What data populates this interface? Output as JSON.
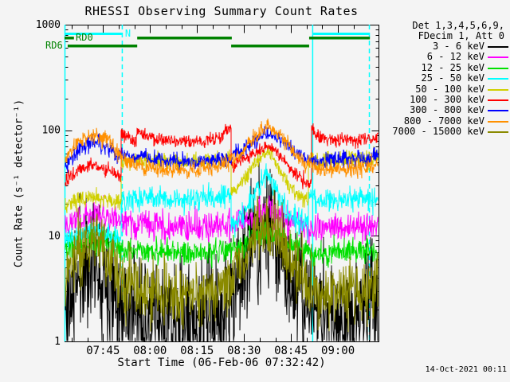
{
  "title": "RHESSI Observing Summary Count Rates",
  "x_axis_label": "Start Time (06-Feb-06 07:32:42)",
  "y_axis_label": "Count Rate (s⁻¹ detector⁻¹)",
  "timestamp": "14-Oct-2021 00:11",
  "legend": {
    "header1": "Det 1,3,4,5,6,9,",
    "header2": "FDecim 1, Att 0",
    "entries": [
      {
        "label": "3 - 6 keV",
        "color": "#000000"
      },
      {
        "label": "6 - 12 keV",
        "color": "#ff00ff"
      },
      {
        "label": "12 - 25 keV",
        "color": "#00e000"
      },
      {
        "label": "25 - 50 keV",
        "color": "#00ffff"
      },
      {
        "label": "50 - 100 keV",
        "color": "#d0d000"
      },
      {
        "label": "100 - 300 keV",
        "color": "#ff0000"
      },
      {
        "label": "300 - 800 keV",
        "color": "#0000ff"
      },
      {
        "label": "800 - 7000 keV",
        "color": "#ff9000"
      },
      {
        "label": "7000 - 15000 keV",
        "color": "#8a8a00"
      }
    ]
  },
  "flags": {
    "night_label": "N",
    "night_color": "#00ffff",
    "rd0_label": "RD0",
    "rd6_label": "RD6",
    "rd_color": "#008200",
    "night_bars_t": [
      [
        0,
        18.3
      ],
      [
        79.4,
        97.2
      ]
    ],
    "rd0_bars_t": [
      [
        0,
        3
      ],
      [
        23.2,
        53.4
      ],
      [
        78.1,
        97.5
      ]
    ],
    "rd6_bars_t": [
      [
        1,
        23.2
      ],
      [
        53.2,
        78.1
      ]
    ],
    "vlines_solid_t": [
      0,
      79.1
    ],
    "vlines_dashed_t": [
      18.3,
      97.2
    ]
  },
  "chart_data": {
    "type": "line",
    "y_scale": "log",
    "ylim": [
      1,
      1000
    ],
    "y_major_ticks": [
      "1",
      "10",
      "100",
      "1000"
    ],
    "x_unit": "minutes since 07:32:42",
    "x_range_minutes": [
      0,
      100.25
    ],
    "x_major_ticks": [
      {
        "t": 12.3,
        "label": "07:45"
      },
      {
        "t": 27.3,
        "label": "08:00"
      },
      {
        "t": 42.3,
        "label": "08:15"
      },
      {
        "t": 57.3,
        "label": "08:30"
      },
      {
        "t": 72.3,
        "label": "08:45"
      },
      {
        "t": 87.3,
        "label": "09:00"
      }
    ],
    "x_minor_tick_start": 2.3,
    "x_minor_tick_step": 5,
    "grid": false,
    "legend_position": "right-outside",
    "series": [
      {
        "name": "3 - 6 keV",
        "color": "#000000",
        "noise": 0.3,
        "seed": 11,
        "points": [
          [
            0,
            1.8
          ],
          [
            5,
            4.5
          ],
          [
            9,
            6.3
          ],
          [
            13,
            4.8
          ],
          [
            17,
            2.8
          ],
          [
            18.3,
            2.5
          ],
          [
            22,
            1.9
          ],
          [
            28,
            1.5
          ],
          [
            40,
            1.5
          ],
          [
            50,
            1.8
          ],
          [
            53.2,
            2.6
          ],
          [
            58,
            6
          ],
          [
            62,
            10.5
          ],
          [
            64.9,
            11.8
          ],
          [
            67,
            9.5
          ],
          [
            71,
            5
          ],
          [
            75,
            2.5
          ],
          [
            79.1,
            2.2
          ],
          [
            82,
            1.8
          ],
          [
            88,
            1.7
          ],
          [
            95,
            1.9
          ],
          [
            100.25,
            2.2
          ]
        ]
      },
      {
        "name": "6 - 12 keV",
        "color": "#ff00ff",
        "noise": 0.07,
        "seed": 22,
        "points": [
          [
            0,
            14
          ],
          [
            9,
            15.5
          ],
          [
            14,
            15
          ],
          [
            18.3,
            13.5
          ],
          [
            25,
            12.5
          ],
          [
            40,
            12
          ],
          [
            50,
            12.3
          ],
          [
            53.2,
            12.5
          ],
          [
            60,
            14
          ],
          [
            64.9,
            18
          ],
          [
            69,
            15
          ],
          [
            75,
            12.5
          ],
          [
            79.1,
            12
          ],
          [
            90,
            12
          ],
          [
            100.25,
            12.5
          ]
        ]
      },
      {
        "name": "12 - 25 keV",
        "color": "#00e000",
        "noise": 0.06,
        "seed": 33,
        "points": [
          [
            0,
            7.5
          ],
          [
            9,
            8.8
          ],
          [
            14,
            8.2
          ],
          [
            18.3,
            7.5
          ],
          [
            30,
            7
          ],
          [
            45,
            7
          ],
          [
            53.2,
            7.5
          ],
          [
            60,
            9
          ],
          [
            64.9,
            11.5
          ],
          [
            69,
            9.5
          ],
          [
            75,
            7.5
          ],
          [
            79.1,
            7
          ],
          [
            90,
            7
          ],
          [
            100.25,
            7.2
          ]
        ]
      },
      {
        "name": "25 - 50 keV",
        "color": "#00ffff",
        "noise": 0.055,
        "seed": 44,
        "points": [
          [
            0,
            9
          ],
          [
            5,
            10.5
          ],
          [
            9,
            11.5
          ],
          [
            14,
            10.5
          ],
          [
            18.29,
            9.5
          ],
          [
            18.3,
            22
          ],
          [
            25,
            23
          ],
          [
            35,
            22
          ],
          [
            45,
            23
          ],
          [
            53.19,
            24
          ],
          [
            53.2,
            12
          ],
          [
            57,
            16
          ],
          [
            61,
            26
          ],
          [
            64.9,
            39
          ],
          [
            67,
            30
          ],
          [
            70,
            20
          ],
          [
            73,
            15
          ],
          [
            78.09,
            13
          ],
          [
            78.1,
            22
          ],
          [
            85,
            22
          ],
          [
            95,
            22
          ],
          [
            100.25,
            21
          ]
        ]
      },
      {
        "name": "50 - 100 keV",
        "color": "#d0d000",
        "noise": 0.04,
        "seed": 55,
        "points": [
          [
            0,
            20
          ],
          [
            5,
            22
          ],
          [
            9,
            23.5
          ],
          [
            14,
            22
          ],
          [
            18.29,
            20
          ],
          [
            18.3,
            50
          ],
          [
            23,
            52
          ],
          [
            35,
            50
          ],
          [
            45,
            51
          ],
          [
            53.19,
            52
          ],
          [
            53.2,
            24
          ],
          [
            56,
            30
          ],
          [
            60,
            45
          ],
          [
            64.9,
            64
          ],
          [
            68,
            45
          ],
          [
            71,
            32
          ],
          [
            75,
            23
          ],
          [
            78.09,
            22
          ],
          [
            78.1,
            52
          ],
          [
            85,
            52
          ],
          [
            93,
            53
          ],
          [
            100.25,
            54
          ]
        ]
      },
      {
        "name": "100 - 300 keV",
        "color": "#ff0000",
        "noise": 0.032,
        "seed": 66,
        "points": [
          [
            0,
            33
          ],
          [
            4,
            42
          ],
          [
            9,
            48
          ],
          [
            14,
            42
          ],
          [
            17,
            36
          ],
          [
            18.29,
            36
          ],
          [
            18.3,
            95
          ],
          [
            20,
            87
          ],
          [
            22,
            81
          ],
          [
            23.19,
            80
          ],
          [
            23.2,
            105
          ],
          [
            25,
            92
          ],
          [
            28,
            84
          ],
          [
            34,
            79
          ],
          [
            42,
            78
          ],
          [
            47,
            80
          ],
          [
            50,
            88
          ],
          [
            53.19,
            108
          ],
          [
            53.2,
            46
          ],
          [
            55,
            48
          ],
          [
            58,
            56
          ],
          [
            64.9,
            71
          ],
          [
            68,
            62
          ],
          [
            71,
            48
          ],
          [
            74,
            38
          ],
          [
            78,
            31
          ],
          [
            79.09,
            31
          ],
          [
            79.1,
            100
          ],
          [
            81,
            88
          ],
          [
            84,
            82
          ],
          [
            90,
            80
          ],
          [
            95,
            81
          ],
          [
            100.25,
            84
          ]
        ]
      },
      {
        "name": "300 - 800 keV",
        "color": "#0000ff",
        "noise": 0.04,
        "seed": 77,
        "points": [
          [
            0,
            46
          ],
          [
            4,
            64
          ],
          [
            9,
            78
          ],
          [
            14,
            68
          ],
          [
            17,
            58
          ],
          [
            18.3,
            58
          ],
          [
            23,
            56
          ],
          [
            32,
            51
          ],
          [
            42,
            50
          ],
          [
            48,
            51
          ],
          [
            53.2,
            55
          ],
          [
            58,
            70
          ],
          [
            64.9,
            97
          ],
          [
            70,
            76
          ],
          [
            74,
            60
          ],
          [
            78,
            52
          ],
          [
            79.1,
            51
          ],
          [
            85,
            52
          ],
          [
            93,
            54
          ],
          [
            100.25,
            56
          ]
        ]
      },
      {
        "name": "800 - 7000 keV",
        "color": "#ff9000",
        "noise": 0.04,
        "seed": 88,
        "points": [
          [
            0,
            52
          ],
          [
            4,
            75
          ],
          [
            9,
            92
          ],
          [
            14,
            80
          ],
          [
            17,
            64
          ],
          [
            18.3,
            56
          ],
          [
            20,
            50
          ],
          [
            23,
            47
          ],
          [
            30,
            43
          ],
          [
            40,
            42
          ],
          [
            48,
            45
          ],
          [
            53.2,
            50
          ],
          [
            58,
            68
          ],
          [
            64.9,
            115
          ],
          [
            70,
            82
          ],
          [
            74,
            58
          ],
          [
            78,
            48
          ],
          [
            79.1,
            46
          ],
          [
            83,
            43
          ],
          [
            90,
            43
          ],
          [
            97,
            45
          ],
          [
            100.25,
            46
          ]
        ]
      },
      {
        "name": "7000 - 15000 keV",
        "color": "#8a8a00",
        "noise": 0.16,
        "seed": 99,
        "points": [
          [
            0,
            4
          ],
          [
            5,
            7
          ],
          [
            9,
            9.5
          ],
          [
            13,
            7.5
          ],
          [
            17,
            5
          ],
          [
            18.3,
            4
          ],
          [
            22,
            3.2
          ],
          [
            30,
            2.8
          ],
          [
            40,
            2.8
          ],
          [
            50,
            3
          ],
          [
            53.2,
            3.5
          ],
          [
            58,
            7
          ],
          [
            62,
            12
          ],
          [
            64.9,
            14
          ],
          [
            67,
            12
          ],
          [
            71,
            7
          ],
          [
            75,
            4
          ],
          [
            79.1,
            3
          ],
          [
            88,
            2.9
          ],
          [
            97,
            3
          ],
          [
            100.25,
            3.2
          ]
        ]
      }
    ]
  }
}
